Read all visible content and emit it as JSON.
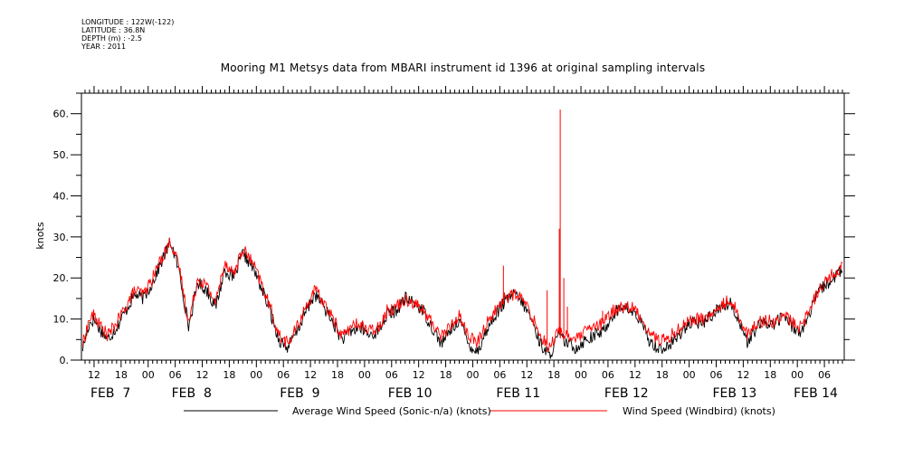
{
  "meta": {
    "longitude": "LONGITUDE : 122W(-122)",
    "latitude": "LATITUDE : 36.8N",
    "depth": "DEPTH (m) : -2.5",
    "year": "YEAR : 2011"
  },
  "chart_data": {
    "type": "line",
    "title": "Mooring M1 Metsys data from MBARI instrument id 1396 at original sampling intervals",
    "ylabel": "knots",
    "xlabel": "",
    "ylim": [
      0,
      65
    ],
    "y_ticks": [
      0,
      10,
      20,
      30,
      40,
      50,
      60
    ],
    "y_tick_labels": [
      "0.",
      "10.",
      "20.",
      "30.",
      "40.",
      "50.",
      "60."
    ],
    "x_unit": "hours since FEB 7 00:00 (2011)",
    "xlim": [
      9.2,
      178.4
    ],
    "x_hour_ticks": [
      {
        "t": 12,
        "label": "12"
      },
      {
        "t": 18,
        "label": "18"
      },
      {
        "t": 24,
        "label": "00"
      },
      {
        "t": 30,
        "label": "06"
      },
      {
        "t": 36,
        "label": "12"
      },
      {
        "t": 42,
        "label": "18"
      },
      {
        "t": 48,
        "label": "00"
      },
      {
        "t": 54,
        "label": "06"
      },
      {
        "t": 60,
        "label": "12"
      },
      {
        "t": 66,
        "label": "18"
      },
      {
        "t": 72,
        "label": "00"
      },
      {
        "t": 78,
        "label": "06"
      },
      {
        "t": 84,
        "label": "12"
      },
      {
        "t": 90,
        "label": "18"
      },
      {
        "t": 96,
        "label": "00"
      },
      {
        "t": 102,
        "label": "06"
      },
      {
        "t": 108,
        "label": "12"
      },
      {
        "t": 114,
        "label": "18"
      },
      {
        "t": 120,
        "label": "00"
      },
      {
        "t": 126,
        "label": "06"
      },
      {
        "t": 132,
        "label": "12"
      },
      {
        "t": 138,
        "label": "18"
      },
      {
        "t": 144,
        "label": "00"
      },
      {
        "t": 150,
        "label": "06"
      },
      {
        "t": 156,
        "label": "12"
      },
      {
        "t": 162,
        "label": "18"
      },
      {
        "t": 168,
        "label": "00"
      },
      {
        "t": 174,
        "label": "06"
      }
    ],
    "x_date_labels": [
      {
        "t": 12,
        "label": "FEB  7"
      },
      {
        "t": 30,
        "label": "FEB  8"
      },
      {
        "t": 54,
        "label": "FEB  9"
      },
      {
        "t": 78,
        "label": "FEB 10"
      },
      {
        "t": 102,
        "label": "FEB 11"
      },
      {
        "t": 126,
        "label": "FEB 12"
      },
      {
        "t": 150,
        "label": "FEB 13"
      },
      {
        "t": 168,
        "label": "FEB 14"
      }
    ],
    "series": [
      {
        "name": "Average Wind Speed (Sonic-n/a) (knots)",
        "color": "#000000",
        "x": [
          9.5,
          11,
          12,
          13,
          15,
          17,
          19,
          21,
          23,
          25,
          27,
          29,
          31,
          33,
          35,
          37,
          39,
          41,
          43,
          45,
          47,
          49,
          51,
          53,
          55,
          57,
          59,
          61,
          63,
          65,
          67,
          69,
          71,
          73,
          75,
          77,
          79,
          81,
          83,
          85,
          87,
          89,
          91,
          93,
          95,
          97,
          99,
          101,
          103,
          105,
          107,
          109,
          111,
          113,
          115,
          117,
          119,
          121,
          123,
          125,
          127,
          129,
          131,
          133,
          135,
          137,
          139,
          141,
          143,
          145,
          147,
          149,
          151,
          153,
          155,
          157,
          159,
          161,
          163,
          165,
          167,
          169,
          171,
          173,
          175,
          177,
          178
        ],
        "y": [
          3,
          9,
          10,
          8,
          5,
          8,
          12,
          16,
          15,
          19,
          24,
          29,
          21,
          8,
          19,
          17,
          13,
          22,
          20,
          26,
          23,
          18,
          12,
          5,
          3,
          7,
          12,
          16,
          13,
          9,
          5,
          7,
          8,
          6,
          7,
          11,
          12,
          15,
          14,
          12,
          8,
          4,
          7,
          10,
          4,
          2,
          7,
          11,
          14,
          16,
          14,
          10,
          4,
          1,
          6,
          4,
          3,
          5,
          6,
          7,
          11,
          13,
          12,
          10,
          5,
          3,
          3,
          5,
          8,
          9,
          9,
          11,
          13,
          14,
          10,
          4,
          8,
          9,
          9,
          11,
          8,
          7,
          12,
          17,
          19,
          21,
          22
        ]
      },
      {
        "name": "Wind Speed (Windbird) (knots)",
        "color": "#ff0000",
        "x": [
          9.5,
          11,
          12,
          13,
          15,
          17,
          19,
          21,
          23,
          25,
          27,
          29,
          31,
          33,
          35,
          37,
          39,
          41,
          43,
          45,
          47,
          49,
          51,
          53,
          55,
          57,
          59,
          61,
          63,
          65,
          67,
          69,
          71,
          73,
          75,
          77,
          79,
          81,
          83,
          85,
          87,
          89,
          91,
          93,
          95,
          97,
          99,
          101,
          103,
          105,
          107,
          109,
          111,
          113,
          115,
          117,
          119,
          121,
          123,
          125,
          127,
          129,
          131,
          133,
          135,
          137,
          139,
          141,
          143,
          145,
          147,
          149,
          151,
          153,
          155,
          157,
          159,
          161,
          163,
          165,
          167,
          169,
          171,
          173,
          175,
          177,
          178
        ],
        "y": [
          4,
          10,
          11,
          9,
          6,
          9,
          13,
          17,
          16,
          20,
          25,
          29,
          22,
          9,
          20,
          18,
          14,
          24,
          21,
          27,
          24,
          19,
          13,
          6,
          4,
          8,
          13,
          17,
          14,
          10,
          6,
          8,
          9,
          7,
          8,
          12,
          13,
          15,
          14,
          12,
          9,
          6,
          8,
          11,
          6,
          4,
          9,
          12,
          15,
          16,
          15,
          11,
          6,
          3,
          7,
          6,
          5,
          7,
          8,
          9,
          12,
          13,
          13,
          11,
          7,
          5,
          5,
          7,
          9,
          10,
          10,
          11,
          13,
          15,
          11,
          6,
          9,
          10,
          9,
          11,
          9,
          8,
          13,
          18,
          20,
          22,
          23
        ]
      }
    ],
    "spikes": {
      "series": "Wind Speed (Windbird) (knots)",
      "points": [
        {
          "x": 102.8,
          "y": 23
        },
        {
          "x": 103.9,
          "y": 16
        },
        {
          "x": 112.5,
          "y": 17
        },
        {
          "x": 115.2,
          "y": 32
        },
        {
          "x": 115.4,
          "y": 61
        },
        {
          "x": 116.2,
          "y": 20
        },
        {
          "x": 117.0,
          "y": 13
        },
        {
          "x": 124.8,
          "y": 12
        },
        {
          "x": 128.5,
          "y": 12
        },
        {
          "x": 131.2,
          "y": 12
        }
      ]
    }
  },
  "legend": {
    "black_label": "Average Wind Speed (Sonic-n/a) (knots)",
    "red_label": "Wind Speed (Windbird) (knots)"
  }
}
